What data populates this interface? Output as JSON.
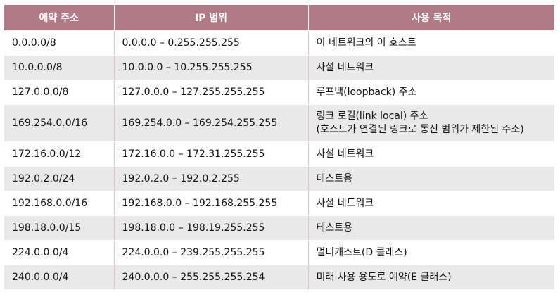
{
  "table": {
    "headers": [
      "예약 주소",
      "IP 범위",
      "사용 목적"
    ],
    "rows": [
      {
        "cidr": "0.0.0.0/8",
        "range": "0.0.0.0 – 0.255.255.255",
        "purpose": [
          "이 네트워크의 이 호스트"
        ]
      },
      {
        "cidr": "10.0.0.0/8",
        "range": "10.0.0.0 – 10.255.255.255",
        "purpose": [
          "사설 네트워크"
        ]
      },
      {
        "cidr": "127.0.0.0/8",
        "range": "127.0.0.0 – 127.255.255.255",
        "purpose": [
          "루프백(loopback) 주소"
        ]
      },
      {
        "cidr": "169.254.0.0/16",
        "range": "169.254.0.0 – 169.254.255.255",
        "purpose": [
          "링크 로컬(link local) 주소",
          "(호스트가 연결된 링크로 통신 범위가 제한된 주소)"
        ]
      },
      {
        "cidr": "172.16.0.0/12",
        "range": "172.16.0.0 – 172.31.255.255",
        "purpose": [
          "사설 네트워크"
        ]
      },
      {
        "cidr": "192.0.2.0/24",
        "range": "192.0.2.0 – 192.0.2.255",
        "purpose": [
          "테스트용"
        ]
      },
      {
        "cidr": "192.168.0.0/16",
        "range": "192.168.0.0 – 192.168.255.255",
        "purpose": [
          "사설 네트워크"
        ]
      },
      {
        "cidr": "198.18.0.0/15",
        "range": "198.18.0.0 – 198.19.255.255",
        "purpose": [
          "테스트용"
        ]
      },
      {
        "cidr": "224.0.0.0/4",
        "range": "224.0.0.0 – 239.255.255.255",
        "purpose": [
          "멀티캐스트(D 클래스)"
        ]
      },
      {
        "cidr": "240.0.0.0/4",
        "range": "240.0.0.0 – 255.255.255.254",
        "purpose": [
          "미래 사용 용도로 예약(E 클래스)"
        ]
      }
    ]
  },
  "colors": {
    "header_bg": "#b07b86",
    "stripe_bg": "#e9e9e9"
  }
}
